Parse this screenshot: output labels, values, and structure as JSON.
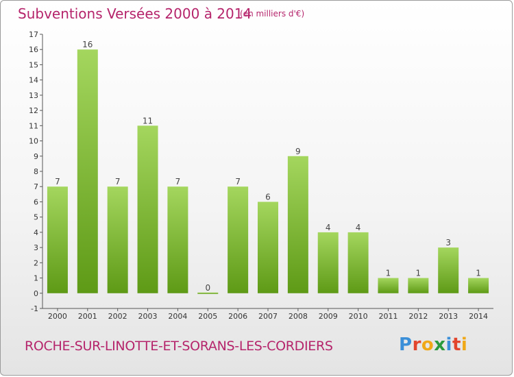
{
  "header": {
    "title": "Subventions Versées 2000 à 2014",
    "subtitle": "(en milliers d'€)"
  },
  "footer": {
    "location": "ROCHE-SUR-LINOTTE-ET-SORANS-LES-CORDIERS",
    "logo": "Proxiti"
  },
  "colors": {
    "accent": "#b5246b",
    "bar_light": "#a4d65e",
    "bar_dark": "#5e9a16"
  },
  "chart_data": {
    "type": "bar",
    "title": "Subventions Versées 2000 à 2014",
    "subtitle": "(en milliers d'€)",
    "categories": [
      "2000",
      "2001",
      "2002",
      "2003",
      "2004",
      "2005",
      "2006",
      "2007",
      "2008",
      "2009",
      "2010",
      "2011",
      "2012",
      "2013",
      "2014"
    ],
    "values": [
      7,
      16,
      7,
      11,
      7,
      0,
      7,
      6,
      9,
      4,
      4,
      1,
      1,
      3,
      1
    ],
    "ylim": [
      -1,
      17
    ],
    "yticks": [
      -1,
      0,
      1,
      2,
      3,
      4,
      5,
      6,
      7,
      8,
      9,
      10,
      11,
      12,
      13,
      14,
      15,
      16,
      17
    ],
    "grid": false,
    "legend": "none"
  }
}
